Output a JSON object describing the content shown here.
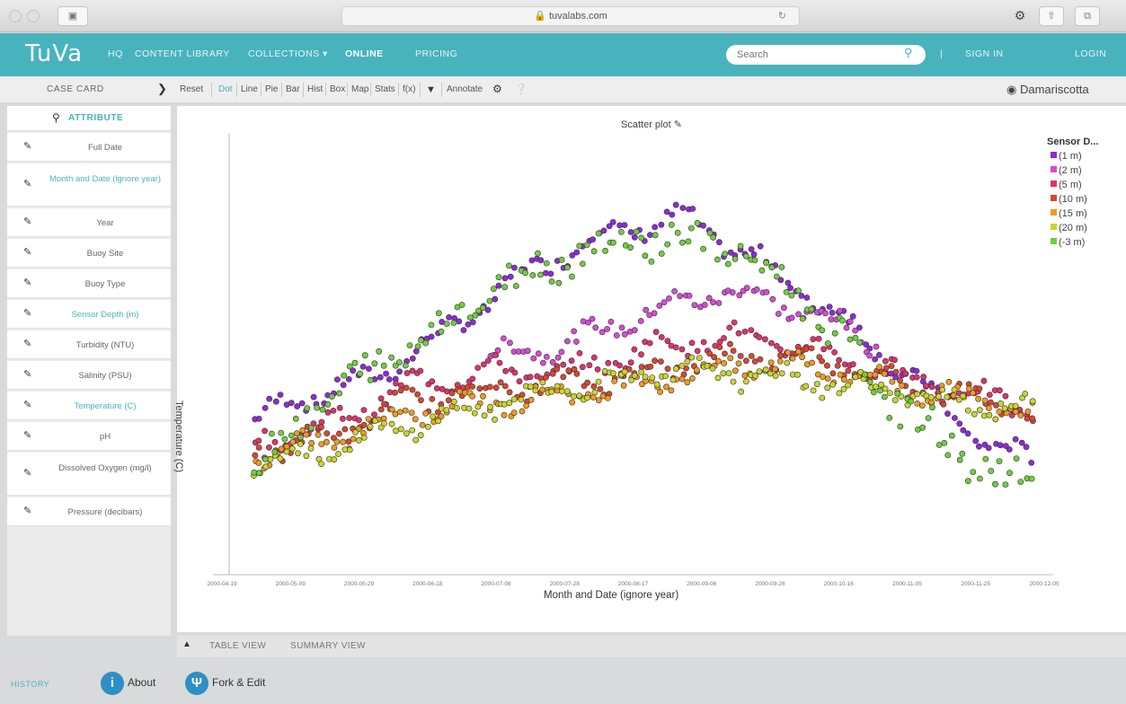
{
  "browser": {
    "url": "tuvalabs.com",
    "window_controls": [
      "close-icon",
      "minimize-icon",
      "zoom-icon"
    ]
  },
  "header": {
    "logo": "TuVa",
    "nav": [
      "HQ",
      "CONTENT LIBRARY",
      "COLLECTIONS ▾",
      "ONLINE",
      "PRICING"
    ],
    "search_placeholder": "Search",
    "right": [
      "SIGN IN",
      "LOGIN"
    ]
  },
  "toolbar": {
    "case_card": "CASE CARD",
    "tools": [
      "Reset",
      "Dot",
      "Line",
      "Pie",
      "Bar",
      "Hist",
      "Box",
      "Map",
      "Stats",
      "f(x)",
      "Annotate"
    ],
    "selected_tool": "Dot",
    "dataset": "Damariscotta"
  },
  "sidebar": {
    "header": "ATTRIBUTE",
    "items": [
      {
        "label": "Full Date",
        "highlight": false
      },
      {
        "label": "Month and Date (ignore year)",
        "highlight": true
      },
      {
        "label": "Year",
        "highlight": false
      },
      {
        "label": "Buoy Site",
        "highlight": false
      },
      {
        "label": "Buoy Type",
        "highlight": false
      },
      {
        "label": "Sensor Depth (m)",
        "highlight": true
      },
      {
        "label": "Turbidity (NTU)",
        "highlight": false
      },
      {
        "label": "Salinity (PSU)",
        "highlight": false
      },
      {
        "label": "Temperature (C)",
        "highlight": true
      },
      {
        "label": "pH",
        "highlight": false
      },
      {
        "label": "Dissolved Oxygen (mg/l)",
        "highlight": false
      },
      {
        "label": "Pressure (decibars)",
        "highlight": false
      }
    ]
  },
  "plot": {
    "title": "Scatter plot",
    "xlabel": "Month and Date (ignore year)",
    "ylabel": "Temperature (C)",
    "legend_title": "Sensor D...",
    "legend": [
      {
        "label": "(1 m)",
        "color": "#8e2bd6"
      },
      {
        "label": "(2 m)",
        "color": "#d84ad6"
      },
      {
        "label": "(5 m)",
        "color": "#e0336b"
      },
      {
        "label": "(10 m)",
        "color": "#d9472f"
      },
      {
        "label": "(15 m)",
        "color": "#f09b1c"
      },
      {
        "label": "(20 m)",
        "color": "#c9d62b"
      },
      {
        "label": "(-3 m)",
        "color": "#6fcf3a"
      }
    ],
    "x_ticks": [
      "2000-04-19",
      "2000-05-09",
      "2000-05-29",
      "2000-06-18",
      "2000-07-08",
      "2000-07-28",
      "2000-08-17",
      "2000-09-06",
      "2000-09-26",
      "2000-10-16",
      "2000-11-05",
      "2000-11-25",
      "2000-12-05"
    ]
  },
  "chart_data": {
    "type": "scatter",
    "title": "Scatter plot",
    "xlabel": "Month and Date (ignore year)",
    "ylabel": "Temperature (C)",
    "x_range": [
      "2000-04-19",
      "2000-12-05"
    ],
    "legend_title": "Sensor D...",
    "series": [
      {
        "name": "(1 m)",
        "color": "#8e2bd6",
        "profile": [
          [
            0,
            7.6
          ],
          [
            0.05,
            8.4
          ],
          [
            0.15,
            9.2
          ],
          [
            0.25,
            11
          ],
          [
            0.35,
            13.2
          ],
          [
            0.45,
            14.6
          ],
          [
            0.55,
            15.2
          ],
          [
            0.65,
            13.5
          ],
          [
            0.75,
            11.5
          ],
          [
            0.85,
            9
          ],
          [
            0.95,
            6.5
          ],
          [
            1,
            6.3
          ]
        ]
      },
      {
        "name": "(2 m)",
        "color": "#d84ad6",
        "profile": [
          [
            0.3,
            10
          ],
          [
            0.4,
            10.5
          ],
          [
            0.5,
            11.6
          ],
          [
            0.6,
            12.5
          ],
          [
            0.7,
            11.8
          ],
          [
            0.8,
            10.5
          ]
        ]
      },
      {
        "name": "(5 m)",
        "color": "#e0336b",
        "profile": [
          [
            0,
            6.8
          ],
          [
            0.1,
            7.5
          ],
          [
            0.2,
            9
          ],
          [
            0.3,
            9.5
          ],
          [
            0.4,
            9.4
          ],
          [
            0.5,
            10.3
          ],
          [
            0.6,
            10.8
          ],
          [
            0.7,
            10.4
          ],
          [
            0.8,
            9.6
          ],
          [
            0.9,
            8.8
          ],
          [
            1,
            8
          ]
        ]
      },
      {
        "name": "(10 m)",
        "color": "#d9472f",
        "profile": [
          [
            0,
            6.5
          ],
          [
            0.1,
            7.1
          ],
          [
            0.2,
            8.4
          ],
          [
            0.3,
            8.8
          ],
          [
            0.45,
            9.2
          ],
          [
            0.6,
            10
          ],
          [
            0.7,
            10.1
          ],
          [
            0.8,
            9.3
          ],
          [
            0.9,
            8.6
          ],
          [
            1,
            8
          ]
        ]
      },
      {
        "name": "(15 m)",
        "color": "#f09b1c",
        "profile": [
          [
            0,
            6.3
          ],
          [
            0.1,
            6.9
          ],
          [
            0.2,
            8
          ],
          [
            0.3,
            8.3
          ],
          [
            0.45,
            8.8
          ],
          [
            0.6,
            9.6
          ],
          [
            0.7,
            9.8
          ],
          [
            0.8,
            9.1
          ],
          [
            0.9,
            8.5
          ],
          [
            1,
            8
          ]
        ]
      },
      {
        "name": "(20 m)",
        "color": "#c9d62b",
        "profile": [
          [
            0,
            6.1
          ],
          [
            0.1,
            6.6
          ],
          [
            0.2,
            7.5
          ],
          [
            0.25,
            7.8
          ],
          [
            0.35,
            8.6
          ],
          [
            0.45,
            9.1
          ],
          [
            0.55,
            9.5
          ],
          [
            0.65,
            9.3
          ],
          [
            0.75,
            9
          ],
          [
            0.85,
            8.6
          ],
          [
            0.95,
            8.2
          ],
          [
            1,
            8
          ]
        ]
      },
      {
        "name": "(-3 m)",
        "color": "#6fcf3a",
        "profile": [
          [
            0,
            6
          ],
          [
            0.1,
            8.6
          ],
          [
            0.2,
            10.4
          ],
          [
            0.3,
            12.4
          ],
          [
            0.4,
            13.8
          ],
          [
            0.5,
            14.5
          ],
          [
            0.6,
            14.2
          ],
          [
            0.7,
            12.3
          ],
          [
            0.8,
            9
          ],
          [
            0.9,
            6.4
          ],
          [
            1,
            5
          ]
        ]
      }
    ],
    "legend_position": "right"
  },
  "bottom": {
    "views": [
      "TABLE VIEW",
      "SUMMARY VIEW"
    ],
    "history": "HISTORY",
    "about": "About",
    "fork": "Fork & Edit"
  }
}
